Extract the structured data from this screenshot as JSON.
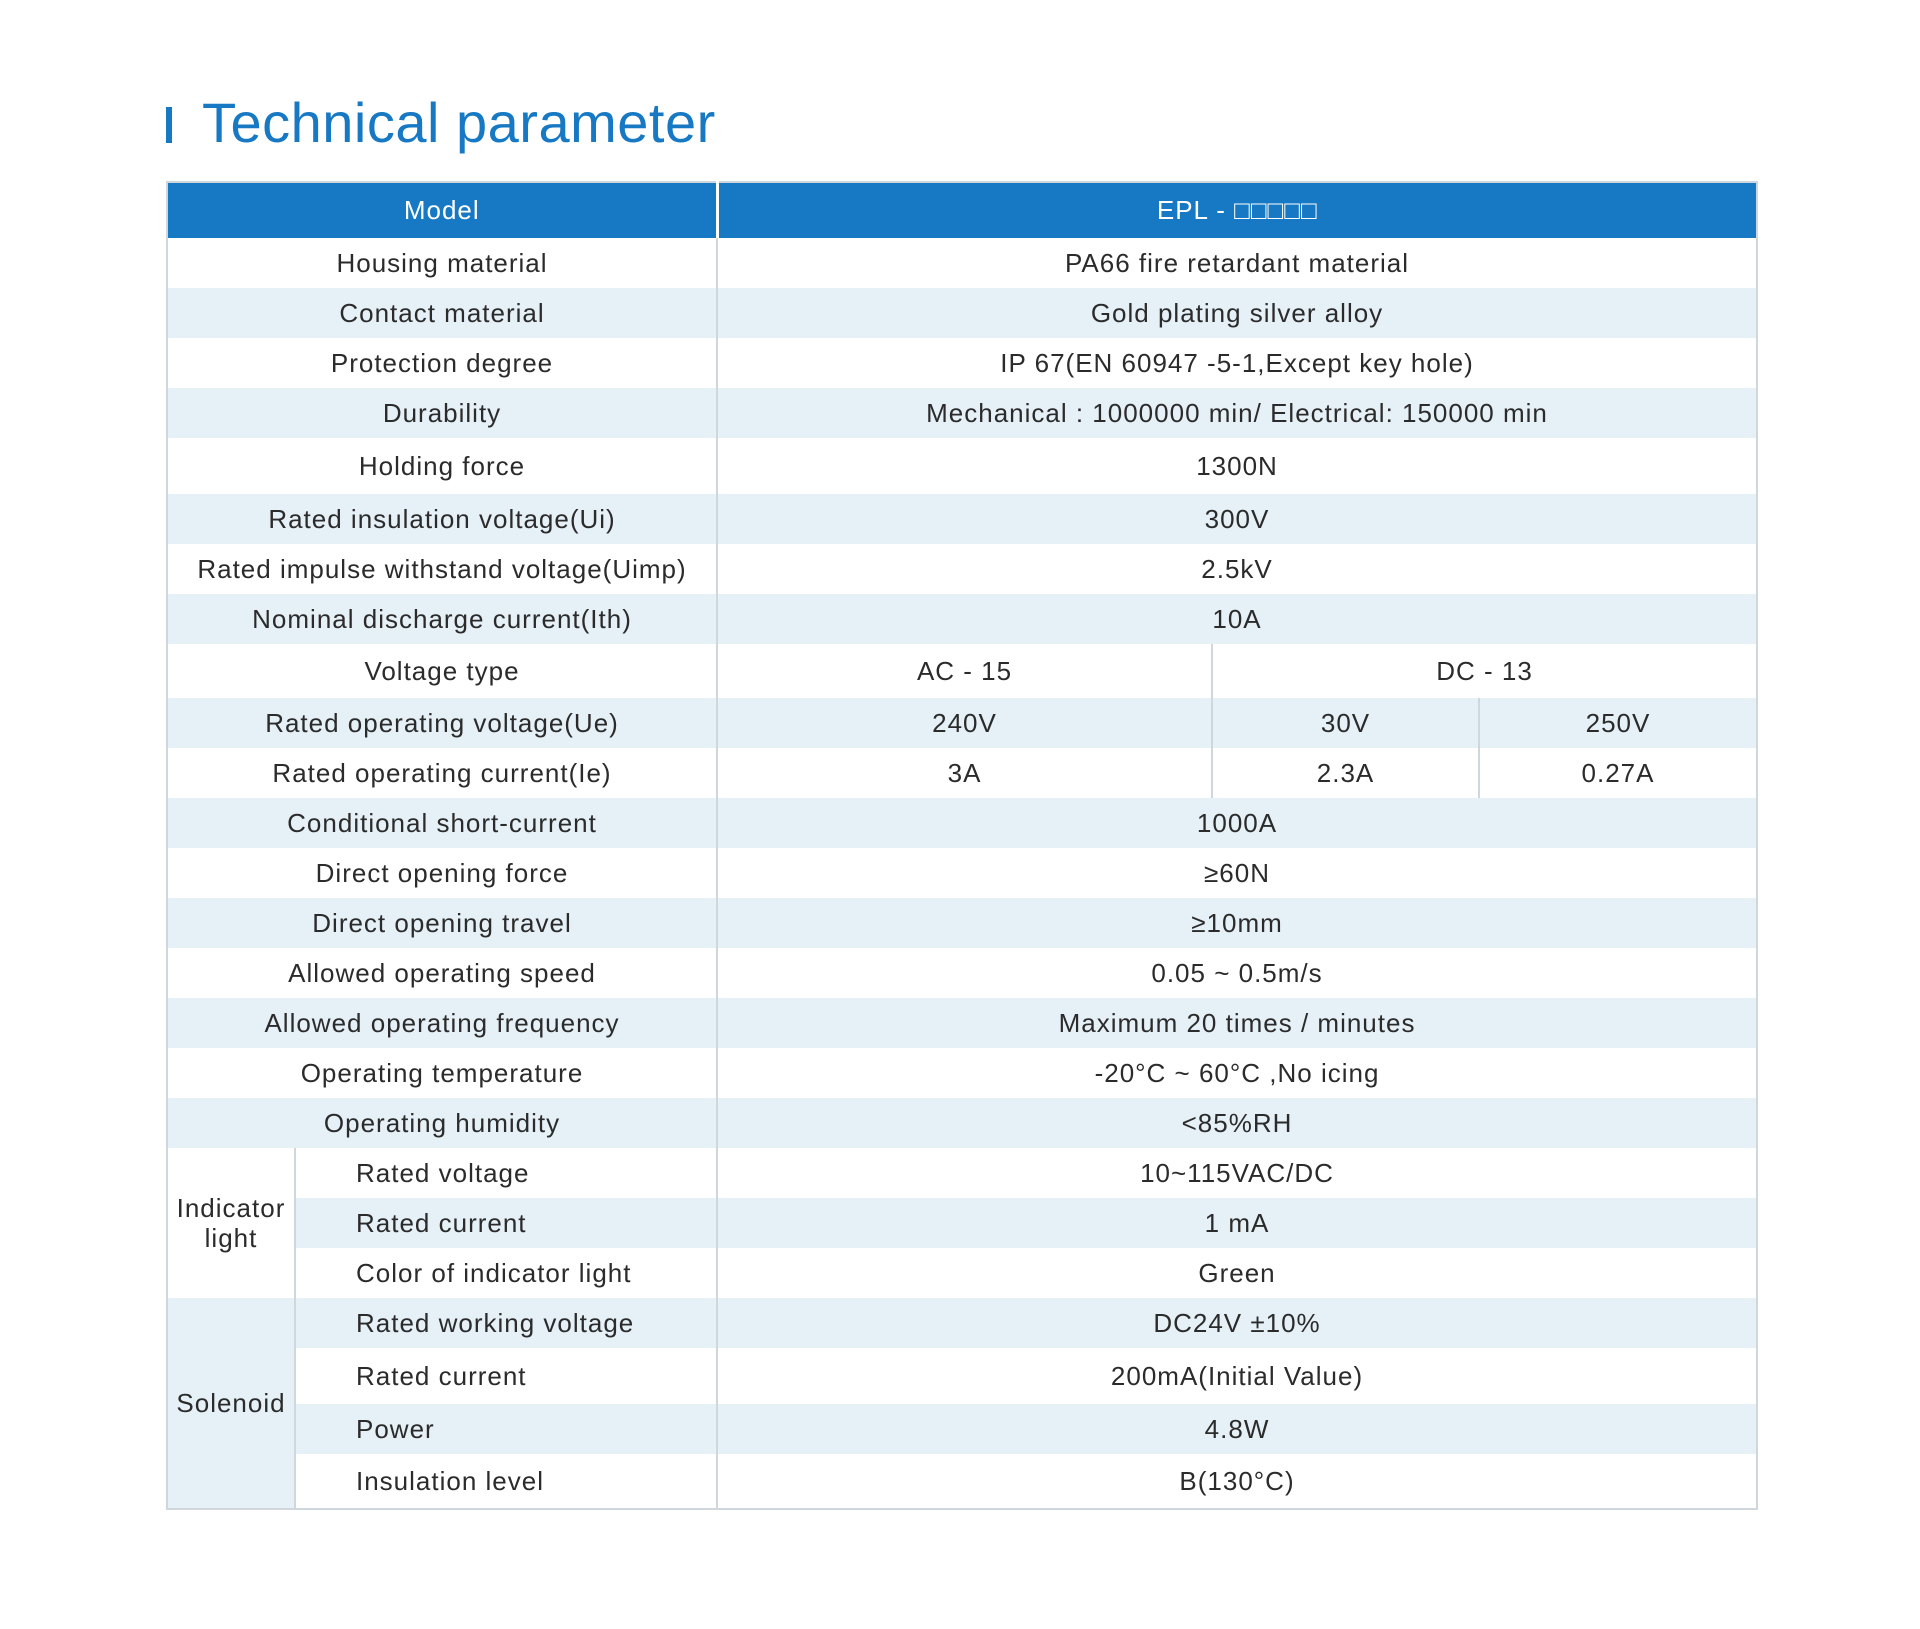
{
  "title": "Technical parameter",
  "header": {
    "model_label": "Model",
    "model_value": "EPL - □□□□□"
  },
  "rows": [
    {
      "label": "Housing material",
      "value": "PA66 fire retardant material"
    },
    {
      "label": "Contact material",
      "value": "Gold plating silver alloy"
    },
    {
      "label": "Protection degree",
      "value": "IP 67(EN 60947 -5-1,Except key hole)"
    },
    {
      "label": "Durability",
      "value": "Mechanical : 1000000 min/ Electrical: 150000 min"
    },
    {
      "label": "Holding force",
      "value": "1300N"
    },
    {
      "label": "Rated insulation voltage(Ui)",
      "value": "300V"
    },
    {
      "label": "Rated impulse withstand voltage(Uimp)",
      "value": "2.5kV"
    },
    {
      "label": "Nominal discharge current(Ith)",
      "value": "10A"
    }
  ],
  "voltage": {
    "type_label": "Voltage type",
    "ac": "AC - 15",
    "dc": "DC - 13",
    "ue_label": "Rated operating voltage(Ue)",
    "ue_values": [
      "240V",
      "30V",
      "250V"
    ],
    "ie_label": "Rated operating current(Ie)",
    "ie_values": [
      "3A",
      "2.3A",
      "0.27A"
    ]
  },
  "rows2": [
    {
      "label": "Conditional short-current",
      "value": "1000A"
    },
    {
      "label": "Direct opening force",
      "value": "≥60N"
    },
    {
      "label": "Direct opening travel",
      "value": "≥10mm"
    },
    {
      "label": "Allowed operating speed",
      "value": "0.05 ~ 0.5m/s"
    },
    {
      "label": "Allowed operating frequency",
      "value": "Maximum 20 times / minutes"
    },
    {
      "label": "Operating temperature",
      "value": "-20°C ~ 60°C ,No icing"
    },
    {
      "label": "Operating humidity",
      "value": "<85%RH"
    }
  ],
  "indicator": {
    "group": "Indicator light",
    "items": [
      {
        "label": "Rated voltage",
        "value": "10~115VAC/DC"
      },
      {
        "label": "Rated current",
        "value": "1 mA"
      },
      {
        "label": "Color of indicator light",
        "value": "Green"
      }
    ]
  },
  "solenoid": {
    "group": "Solenoid",
    "items": [
      {
        "label": "Rated working voltage",
        "value": "DC24V  ±10%"
      },
      {
        "label": "Rated current",
        "value": "200mA(Initial Value)"
      },
      {
        "label": "Power",
        "value": "4.8W"
      },
      {
        "label": "Insulation level",
        "value": "B(130°C)"
      }
    ]
  }
}
